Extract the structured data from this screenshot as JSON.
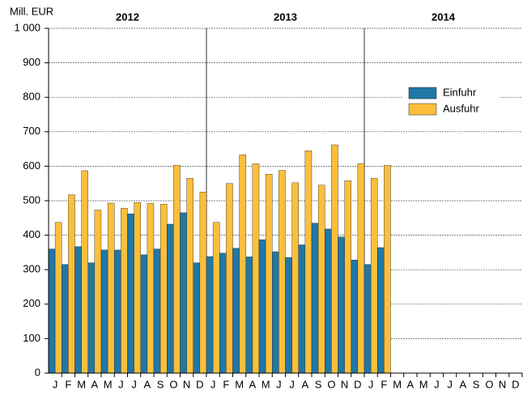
{
  "chart_data": {
    "type": "bar",
    "y_unit_label": "Mill. EUR",
    "year_labels": [
      "2012",
      "2013",
      "2014"
    ],
    "categories": [
      "J",
      "F",
      "M",
      "A",
      "M",
      "J",
      "J",
      "A",
      "S",
      "O",
      "N",
      "D",
      "J",
      "F",
      "M",
      "A",
      "M",
      "J",
      "J",
      "A",
      "S",
      "O",
      "N",
      "D",
      "J",
      "F",
      "M",
      "A",
      "M",
      "J",
      "J",
      "A",
      "S",
      "O",
      "N",
      "D"
    ],
    "series": [
      {
        "name": "Einfuhr",
        "color": "#2177a6",
        "values": [
          360,
          315,
          367,
          320,
          357,
          357,
          462,
          343,
          360,
          432,
          465,
          320,
          338,
          348,
          362,
          337,
          387,
          352,
          335,
          372,
          435,
          418,
          395,
          328,
          315,
          364,
          null,
          null,
          null,
          null,
          null,
          null,
          null,
          null,
          null,
          null
        ]
      },
      {
        "name": "Ausfuhr",
        "color": "#fbbf3b",
        "values": [
          437,
          517,
          587,
          473,
          493,
          478,
          495,
          492,
          490,
          603,
          565,
          525,
          437,
          550,
          633,
          607,
          577,
          588,
          552,
          645,
          545,
          662,
          558,
          608,
          565,
          603,
          null,
          null,
          null,
          null,
          null,
          null,
          null,
          null,
          null,
          null
        ]
      }
    ],
    "ylim": [
      0,
      1000
    ],
    "yticks": [
      0,
      100,
      200,
      300,
      400,
      500,
      600,
      700,
      800,
      900,
      {
        "value": 1000,
        "label": "1 000"
      }
    ],
    "grid": true,
    "legend": "right"
  }
}
